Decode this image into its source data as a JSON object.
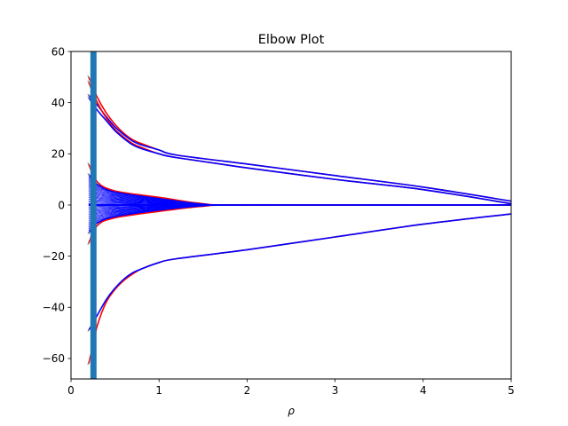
{
  "chart_data": {
    "type": "line",
    "title": "Elbow Plot",
    "xlabel": "ρ",
    "ylabel": "",
    "xlim": [
      0,
      5
    ],
    "ylim": [
      -68,
      60
    ],
    "x_ticks": [
      0,
      1,
      2,
      3,
      4,
      5
    ],
    "y_ticks": [
      -60,
      -40,
      -20,
      0,
      20,
      40,
      60
    ],
    "grid": false,
    "legend": "none",
    "colors": {
      "red": "#ff0000",
      "blue": "#0000ff",
      "marker": "#1f77b4",
      "bundle": "#0000ff"
    },
    "vertical_markers": [
      0.24,
      0.27
    ],
    "series": [
      {
        "color": "red",
        "points": [
          [
            0.2,
            50
          ],
          [
            0.3,
            42
          ],
          [
            0.4,
            36
          ],
          [
            0.5,
            31.5
          ],
          [
            0.6,
            28
          ],
          [
            0.7,
            25.5
          ],
          [
            0.8,
            24
          ],
          [
            1.0,
            21.5
          ],
          [
            1.2,
            19.5
          ],
          [
            2,
            16
          ],
          [
            3,
            11.5
          ],
          [
            4,
            7
          ],
          [
            5,
            1.5
          ]
        ]
      },
      {
        "color": "blue",
        "points": [
          [
            0.2,
            43
          ],
          [
            0.3,
            39
          ],
          [
            0.4,
            34.5
          ],
          [
            0.5,
            30.5
          ],
          [
            0.6,
            27.5
          ],
          [
            0.7,
            25
          ],
          [
            0.8,
            23.5
          ],
          [
            1.0,
            21.5
          ],
          [
            1.2,
            19.5
          ],
          [
            2,
            16
          ],
          [
            3,
            11.5
          ],
          [
            4,
            7
          ],
          [
            5,
            1.5
          ]
        ]
      },
      {
        "color": "red",
        "points": [
          [
            0.2,
            48
          ],
          [
            0.3,
            40
          ],
          [
            0.4,
            34
          ],
          [
            0.5,
            29.5
          ],
          [
            0.6,
            26.5
          ],
          [
            0.7,
            24
          ],
          [
            0.8,
            22.5
          ],
          [
            1.0,
            20
          ],
          [
            1.2,
            18.5
          ],
          [
            2,
            14.5
          ],
          [
            3,
            10
          ],
          [
            4,
            6
          ],
          [
            5,
            0.5
          ]
        ]
      },
      {
        "color": "blue",
        "points": [
          [
            0.2,
            42
          ],
          [
            0.3,
            37
          ],
          [
            0.4,
            33
          ],
          [
            0.5,
            29
          ],
          [
            0.6,
            26
          ],
          [
            0.7,
            23.5
          ],
          [
            0.8,
            22
          ],
          [
            1.0,
            20
          ],
          [
            1.2,
            18.5
          ],
          [
            2,
            14.5
          ],
          [
            3,
            10
          ],
          [
            4,
            6
          ],
          [
            5,
            0.5
          ]
        ]
      },
      {
        "color": "red",
        "points": [
          [
            0.2,
            -62
          ],
          [
            0.25,
            -55
          ],
          [
            0.3,
            -47
          ],
          [
            0.4,
            -38
          ],
          [
            0.5,
            -33
          ],
          [
            0.6,
            -29.5
          ],
          [
            0.7,
            -27
          ],
          [
            0.8,
            -25
          ],
          [
            1.0,
            -22.5
          ],
          [
            1.2,
            -21
          ],
          [
            2,
            -17.5
          ],
          [
            3,
            -12.5
          ],
          [
            4,
            -7.5
          ],
          [
            5,
            -3.5
          ]
        ]
      },
      {
        "color": "blue",
        "points": [
          [
            0.2,
            -49
          ],
          [
            0.3,
            -43
          ],
          [
            0.4,
            -37
          ],
          [
            0.5,
            -32.5
          ],
          [
            0.6,
            -29
          ],
          [
            0.7,
            -26.5
          ],
          [
            0.8,
            -25
          ],
          [
            1.0,
            -22.5
          ],
          [
            1.2,
            -21
          ],
          [
            2,
            -17.5
          ],
          [
            3,
            -12.5
          ],
          [
            4,
            -7.5
          ],
          [
            5,
            -3.5
          ]
        ]
      },
      {
        "color": "red",
        "points": [
          [
            0.2,
            16
          ],
          [
            0.3,
            9
          ],
          [
            0.5,
            5.5
          ],
          [
            1.0,
            3
          ],
          [
            1.5,
            0.5
          ],
          [
            2,
            0
          ],
          [
            5,
            0
          ]
        ]
      },
      {
        "color": "red",
        "points": [
          [
            0.2,
            -15
          ],
          [
            0.3,
            -8
          ],
          [
            0.5,
            -5
          ],
          [
            1.0,
            -2.5
          ],
          [
            1.5,
            -0.5
          ],
          [
            2,
            0
          ],
          [
            5,
            0
          ]
        ]
      },
      {
        "color": "blue",
        "points": [
          [
            0.2,
            12
          ],
          [
            0.3,
            8
          ],
          [
            0.5,
            5
          ],
          [
            1.0,
            2.5
          ],
          [
            1.5,
            0.3
          ],
          [
            2,
            0
          ],
          [
            5,
            0
          ]
        ]
      },
      {
        "color": "blue",
        "points": [
          [
            0.2,
            -11
          ],
          [
            0.3,
            -7
          ],
          [
            0.5,
            -4.5
          ],
          [
            1.0,
            -2
          ],
          [
            1.5,
            -0.3
          ],
          [
            2,
            0
          ],
          [
            5,
            0
          ]
        ]
      }
    ],
    "bundle": {
      "color": "blue",
      "x_start": 0.2,
      "x_end": 1.62,
      "upper": [
        [
          0.2,
          11
        ],
        [
          0.3,
          7.5
        ],
        [
          0.5,
          5
        ],
        [
          0.8,
          3.3
        ],
        [
          1.0,
          2.4
        ],
        [
          1.2,
          1.6
        ],
        [
          1.4,
          0.8
        ],
        [
          1.62,
          0
        ]
      ],
      "lower": [
        [
          0.2,
          -10
        ],
        [
          0.3,
          -7
        ],
        [
          0.5,
          -4.5
        ],
        [
          0.8,
          -3
        ],
        [
          1.0,
          -2.1
        ],
        [
          1.2,
          -1.4
        ],
        [
          1.4,
          -0.7
        ],
        [
          1.62,
          0
        ]
      ],
      "line_count": 34
    }
  }
}
